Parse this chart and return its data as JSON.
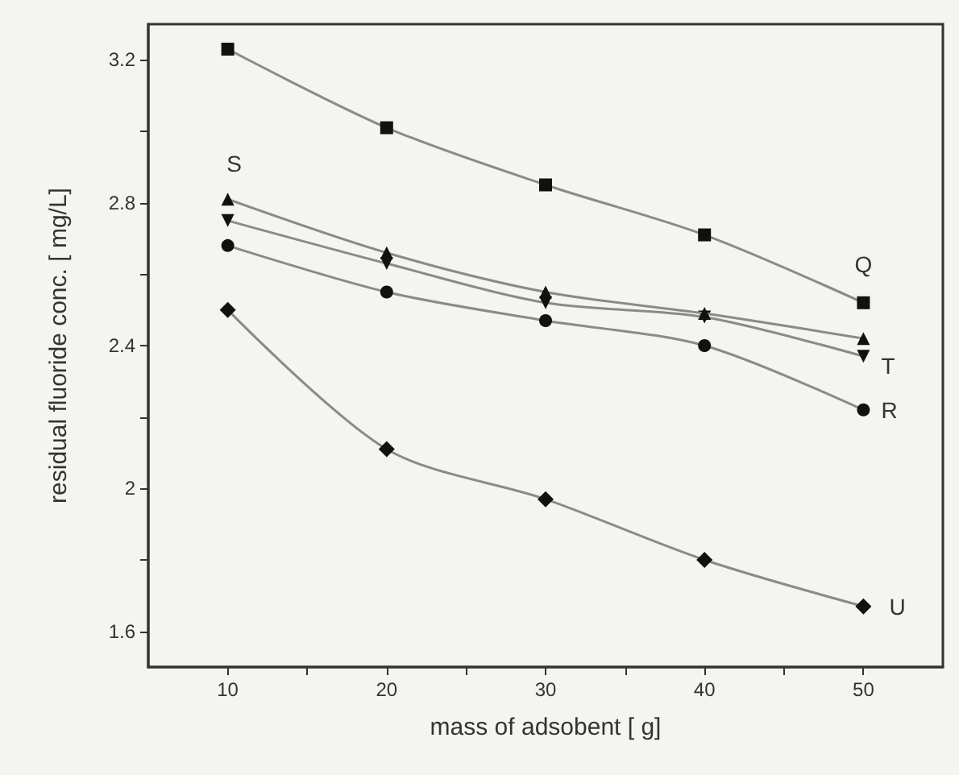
{
  "chart_data": {
    "type": "line",
    "xlabel": "mass of adsobent [ g]",
    "ylabel": "residual fluoride conc. [ mg/L]",
    "x": [
      10,
      20,
      30,
      40,
      50
    ],
    "series": [
      {
        "name": "Q",
        "color": "#111111",
        "marker": "square",
        "values": [
          3.23,
          3.01,
          2.85,
          2.71,
          2.52
        ]
      },
      {
        "name": "R",
        "color": "#111111",
        "marker": "circle",
        "values": [
          2.68,
          2.55,
          2.47,
          2.4,
          2.22
        ]
      },
      {
        "name": "S",
        "color": "#111111",
        "marker": "triangle",
        "values": [
          2.81,
          2.66,
          2.55,
          2.49,
          2.42
        ]
      },
      {
        "name": "T",
        "color": "#111111",
        "marker": "triangle-down",
        "values": [
          2.75,
          2.63,
          2.52,
          2.48,
          2.37
        ]
      },
      {
        "name": "U",
        "color": "#111111",
        "marker": "diamond",
        "values": [
          2.5,
          2.11,
          1.97,
          1.8,
          1.67
        ]
      }
    ],
    "xlim": [
      5,
      55
    ],
    "xticks": [
      10,
      {
        "value": 15,
        "label": null
      },
      20,
      {
        "value": 25,
        "label": null
      },
      30,
      {
        "value": 35,
        "label": null
      },
      40,
      {
        "value": 45,
        "label": null
      },
      50
    ],
    "ylim": [
      1.5,
      3.3
    ],
    "yticks": [
      1.6,
      {
        "value": 1.8,
        "label": null
      },
      2.0,
      {
        "value": 2.2,
        "label": null
      },
      2.4,
      {
        "value": 2.6,
        "label": null
      },
      2.8,
      {
        "value": 3.0,
        "label": null
      },
      3.2
    ],
    "grid": false,
    "legend": false,
    "line_style": "solid"
  }
}
